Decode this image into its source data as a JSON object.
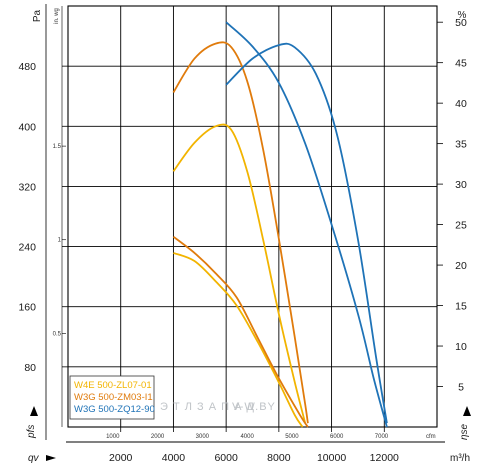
{
  "chart_data": {
    "type": "line",
    "x_axis_m3h": {
      "ticks": [
        "2000",
        "4000",
        "6000",
        "8000",
        "10000",
        "12000"
      ],
      "unit": "m³/h",
      "symbol": "qv",
      "range": [
        0,
        14000
      ]
    },
    "x_axis_cfm": {
      "ticks": [
        "1000",
        "2000",
        "3000",
        "4000",
        "5000",
        "6000",
        "7000"
      ],
      "unit": "cfm"
    },
    "y_axis_pa": {
      "ticks": [
        "80",
        "160",
        "240",
        "320",
        "400",
        "480"
      ],
      "unit": "Pa",
      "symbol": "pfs",
      "range": [
        0,
        560
      ]
    },
    "y_axis_inwg": {
      "ticks": [
        "0.5",
        "1",
        "1.5"
      ],
      "unit": "in. wg"
    },
    "y_axis_eff": {
      "ticks": [
        "5",
        "10",
        "15",
        "20",
        "25",
        "30",
        "35",
        "40",
        "45",
        "50"
      ],
      "unit": "%",
      "symbol": "ηse",
      "range": [
        0,
        52
      ]
    },
    "series": [
      {
        "name": "W4E 500-ZL07-01",
        "color": "#f2b400",
        "pressure": [
          [
            4000,
            340
          ],
          [
            4800,
            378
          ],
          [
            5600,
            400
          ],
          [
            6200,
            395
          ],
          [
            6800,
            340
          ],
          [
            7400,
            250
          ],
          [
            8000,
            150
          ],
          [
            8600,
            60
          ],
          [
            9000,
            5
          ]
        ],
        "efficiency": [
          [
            4000,
            21.5
          ],
          [
            4800,
            20.5
          ],
          [
            5600,
            18
          ],
          [
            6400,
            15
          ],
          [
            7200,
            10.5
          ],
          [
            8000,
            5.5
          ],
          [
            8600,
            1.5
          ],
          [
            8900,
            0
          ]
        ]
      },
      {
        "name": "W3G 500-ZM03-I1",
        "color": "#e07b0c",
        "pressure": [
          [
            4000,
            445
          ],
          [
            4800,
            490
          ],
          [
            5600,
            510
          ],
          [
            6200,
            505
          ],
          [
            6800,
            460
          ],
          [
            7400,
            370
          ],
          [
            8000,
            250
          ],
          [
            8600,
            120
          ],
          [
            9000,
            30
          ],
          [
            9100,
            5
          ]
        ],
        "efficiency": [
          [
            4000,
            23.5
          ],
          [
            4800,
            21.5
          ],
          [
            5600,
            19
          ],
          [
            6400,
            16
          ],
          [
            7200,
            11
          ],
          [
            8000,
            6
          ],
          [
            8800,
            1.5
          ],
          [
            9100,
            0
          ]
        ]
      },
      {
        "name": "W3G 500-ZQ12-90",
        "color": "#1f73b7",
        "pressure": [
          [
            6000,
            455
          ],
          [
            7000,
            490
          ],
          [
            8000,
            508
          ],
          [
            8600,
            505
          ],
          [
            9400,
            470
          ],
          [
            10200,
            390
          ],
          [
            11000,
            250
          ],
          [
            11700,
            90
          ],
          [
            12100,
            5
          ]
        ],
        "efficiency": [
          [
            6000,
            50
          ],
          [
            7000,
            47
          ],
          [
            8000,
            42.5
          ],
          [
            9000,
            35
          ],
          [
            10000,
            25
          ],
          [
            11000,
            14
          ],
          [
            11600,
            6
          ],
          [
            12100,
            0
          ]
        ]
      }
    ],
    "grid": true,
    "legend_position": "bottom-left"
  },
  "watermark": {
    "text1": "Э Т Л   З А П А Д",
    "text2": "V-W.BY"
  }
}
